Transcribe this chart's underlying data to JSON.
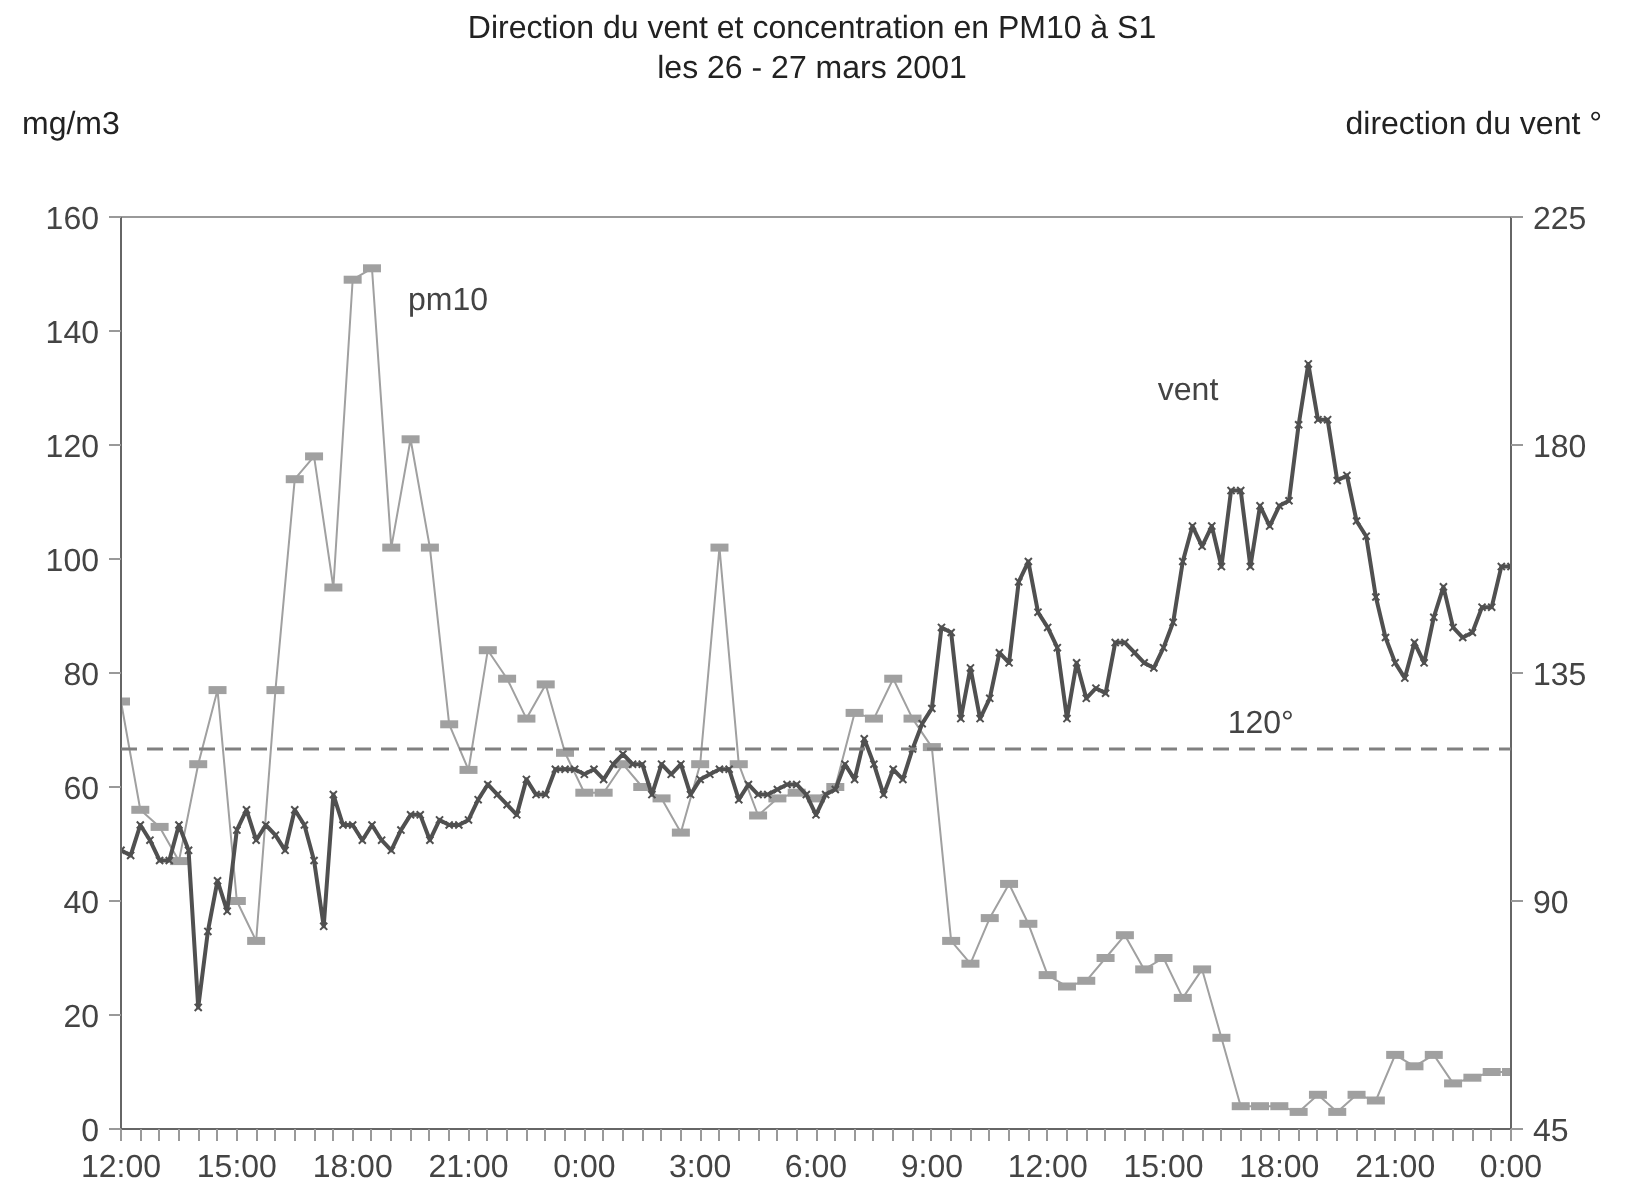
{
  "chart_data": {
    "type": "line",
    "title": "Direction du vent et concentration en PM10 à S1",
    "subtitle": "les 26 - 27 mars 2001",
    "ylabel": "mg/m3",
    "y2label": "direction du vent °",
    "xlim": [
      "2001-03-26T12:00",
      "2001-03-28T00:00"
    ],
    "xticks": [
      {
        "value": "2001-03-26T12:00",
        "label": "12:00"
      },
      {
        "value": "2001-03-26T15:00",
        "label": "15:00"
      },
      {
        "value": "2001-03-26T18:00",
        "label": "18:00"
      },
      {
        "value": "2001-03-26T21:00",
        "label": "21:00"
      },
      {
        "value": "2001-03-27T00:00",
        "label": "0:00"
      },
      {
        "value": "2001-03-27T03:00",
        "label": "3:00"
      },
      {
        "value": "2001-03-27T06:00",
        "label": "6:00"
      },
      {
        "value": "2001-03-27T09:00",
        "label": "9:00"
      },
      {
        "value": "2001-03-27T12:00",
        "label": "12:00"
      },
      {
        "value": "2001-03-27T15:00",
        "label": "15:00"
      },
      {
        "value": "2001-03-27T18:00",
        "label": "18:00"
      },
      {
        "value": "2001-03-27T21:00",
        "label": "21:00"
      },
      {
        "value": "2001-03-28T00:00",
        "label": "0:00"
      }
    ],
    "ylim": [
      0,
      160
    ],
    "yticks": [
      0,
      20,
      40,
      60,
      80,
      100,
      120,
      140,
      160
    ],
    "y2lim": [
      45,
      225
    ],
    "y2ticks": [
      45,
      90,
      135,
      180,
      225
    ],
    "grid": false,
    "legend": false,
    "ref_lines": [
      {
        "axis": "y2",
        "value": 120,
        "label": "120°",
        "color": "#808080",
        "line_style": "dashed"
      }
    ],
    "series": [
      {
        "name": "pm10",
        "color": "#a0a0a0",
        "marker": "square",
        "x": [
          "2001-03-26T12:00",
          "2001-03-26T12:30",
          "2001-03-26T13:00",
          "2001-03-26T13:30",
          "2001-03-26T14:00",
          "2001-03-26T14:30",
          "2001-03-26T15:00",
          "2001-03-26T15:30",
          "2001-03-26T16:00",
          "2001-03-26T16:30",
          "2001-03-26T17:00",
          "2001-03-26T17:30",
          "2001-03-26T18:00",
          "2001-03-26T18:30",
          "2001-03-26T19:00",
          "2001-03-26T19:30",
          "2001-03-26T20:00",
          "2001-03-26T20:30",
          "2001-03-26T21:00",
          "2001-03-26T21:30",
          "2001-03-26T22:00",
          "2001-03-26T22:30",
          "2001-03-26T23:00",
          "2001-03-26T23:30",
          "2001-03-27T00:00",
          "2001-03-27T00:30",
          "2001-03-27T01:00",
          "2001-03-27T01:30",
          "2001-03-27T02:00",
          "2001-03-27T02:30",
          "2001-03-27T03:00",
          "2001-03-27T03:30",
          "2001-03-27T04:00",
          "2001-03-27T04:30",
          "2001-03-27T05:00",
          "2001-03-27T05:30",
          "2001-03-27T06:00",
          "2001-03-27T06:30",
          "2001-03-27T07:00",
          "2001-03-27T07:30",
          "2001-03-27T08:00",
          "2001-03-27T08:30",
          "2001-03-27T09:00",
          "2001-03-27T09:30",
          "2001-03-27T10:00",
          "2001-03-27T10:30",
          "2001-03-27T11:00",
          "2001-03-27T11:30",
          "2001-03-27T12:00",
          "2001-03-27T12:30",
          "2001-03-27T13:00",
          "2001-03-27T13:30",
          "2001-03-27T14:00",
          "2001-03-27T14:30",
          "2001-03-27T15:00",
          "2001-03-27T15:30",
          "2001-03-27T16:00",
          "2001-03-27T16:30",
          "2001-03-27T17:00",
          "2001-03-27T17:30",
          "2001-03-27T18:00",
          "2001-03-27T18:30",
          "2001-03-27T19:00",
          "2001-03-27T19:30",
          "2001-03-27T20:00",
          "2001-03-27T20:30",
          "2001-03-27T21:00",
          "2001-03-27T21:30",
          "2001-03-27T22:00",
          "2001-03-27T22:30",
          "2001-03-27T23:00",
          "2001-03-27T23:30",
          "2001-03-28T00:00"
        ],
        "values": [
          75,
          56,
          53,
          47,
          64,
          77,
          40,
          33,
          77,
          114,
          118,
          95,
          149,
          151,
          102,
          121,
          102,
          71,
          63,
          84,
          79,
          72,
          78,
          66,
          59,
          59,
          64,
          60,
          58,
          52,
          64,
          102,
          64,
          55,
          58,
          59,
          58,
          60,
          73,
          72,
          79,
          72,
          67,
          33,
          29,
          37,
          43,
          36,
          27,
          25,
          26,
          30,
          34,
          28,
          30,
          23,
          28,
          16,
          4,
          4,
          4,
          3,
          6,
          3,
          6,
          5,
          13,
          11,
          13,
          8,
          9,
          10,
          10
        ]
      },
      {
        "name": "vent",
        "color": "#505050",
        "marker": "cross",
        "axis": "y2",
        "x": [
          "2001-03-26T12:00",
          "2001-03-26T12:15",
          "2001-03-26T12:30",
          "2001-03-26T12:45",
          "2001-03-26T13:00",
          "2001-03-26T13:15",
          "2001-03-26T13:30",
          "2001-03-26T13:45",
          "2001-03-26T14:00",
          "2001-03-26T14:15",
          "2001-03-26T14:30",
          "2001-03-26T14:45",
          "2001-03-26T15:00",
          "2001-03-26T15:15",
          "2001-03-26T15:30",
          "2001-03-26T15:45",
          "2001-03-26T16:00",
          "2001-03-26T16:15",
          "2001-03-26T16:30",
          "2001-03-26T16:45",
          "2001-03-26T17:00",
          "2001-03-26T17:15",
          "2001-03-26T17:30",
          "2001-03-26T17:45",
          "2001-03-26T18:00",
          "2001-03-26T18:15",
          "2001-03-26T18:30",
          "2001-03-26T18:45",
          "2001-03-26T19:00",
          "2001-03-26T19:15",
          "2001-03-26T19:30",
          "2001-03-26T19:45",
          "2001-03-26T20:00",
          "2001-03-26T20:15",
          "2001-03-26T20:30",
          "2001-03-26T20:45",
          "2001-03-26T21:00",
          "2001-03-26T21:15",
          "2001-03-26T21:30",
          "2001-03-26T21:45",
          "2001-03-26T22:00",
          "2001-03-26T22:15",
          "2001-03-26T22:30",
          "2001-03-26T22:45",
          "2001-03-26T23:00",
          "2001-03-26T23:15",
          "2001-03-26T23:30",
          "2001-03-26T23:45",
          "2001-03-27T00:00",
          "2001-03-27T00:15",
          "2001-03-27T00:30",
          "2001-03-27T00:45",
          "2001-03-27T01:00",
          "2001-03-27T01:15",
          "2001-03-27T01:30",
          "2001-03-27T01:45",
          "2001-03-27T02:00",
          "2001-03-27T02:15",
          "2001-03-27T02:30",
          "2001-03-27T02:45",
          "2001-03-27T03:00",
          "2001-03-27T03:15",
          "2001-03-27T03:30",
          "2001-03-27T03:45",
          "2001-03-27T04:00",
          "2001-03-27T04:15",
          "2001-03-27T04:30",
          "2001-03-27T04:45",
          "2001-03-27T05:00",
          "2001-03-27T05:15",
          "2001-03-27T05:30",
          "2001-03-27T05:45",
          "2001-03-27T06:00",
          "2001-03-27T06:15",
          "2001-03-27T06:30",
          "2001-03-27T06:45",
          "2001-03-27T07:00",
          "2001-03-27T07:15",
          "2001-03-27T07:30",
          "2001-03-27T07:45",
          "2001-03-27T08:00",
          "2001-03-27T08:15",
          "2001-03-27T08:30",
          "2001-03-27T08:45",
          "2001-03-27T09:00",
          "2001-03-27T09:15",
          "2001-03-27T09:30",
          "2001-03-27T09:45",
          "2001-03-27T10:00",
          "2001-03-27T10:15",
          "2001-03-27T10:30",
          "2001-03-27T10:45",
          "2001-03-27T11:00",
          "2001-03-27T11:15",
          "2001-03-27T11:30",
          "2001-03-27T11:45",
          "2001-03-27T12:00",
          "2001-03-27T12:15",
          "2001-03-27T12:30",
          "2001-03-27T12:45",
          "2001-03-27T13:00",
          "2001-03-27T13:15",
          "2001-03-27T13:30",
          "2001-03-27T13:45",
          "2001-03-27T14:00",
          "2001-03-27T14:15",
          "2001-03-27T14:30",
          "2001-03-27T14:45",
          "2001-03-27T15:00",
          "2001-03-27T15:15",
          "2001-03-27T15:30",
          "2001-03-27T15:45",
          "2001-03-27T16:00",
          "2001-03-27T16:15",
          "2001-03-27T16:30",
          "2001-03-27T16:45",
          "2001-03-27T17:00",
          "2001-03-27T17:15",
          "2001-03-27T17:30",
          "2001-03-27T17:45",
          "2001-03-27T18:00",
          "2001-03-27T18:15",
          "2001-03-27T18:30",
          "2001-03-27T18:45",
          "2001-03-27T19:00",
          "2001-03-27T19:15",
          "2001-03-27T19:30",
          "2001-03-27T19:45",
          "2001-03-27T20:00",
          "2001-03-27T20:15",
          "2001-03-27T20:30",
          "2001-03-27T20:45",
          "2001-03-27T21:00",
          "2001-03-27T21:15",
          "2001-03-27T21:30",
          "2001-03-27T21:45",
          "2001-03-27T22:00",
          "2001-03-27T22:15",
          "2001-03-27T22:30",
          "2001-03-27T22:45",
          "2001-03-27T23:00",
          "2001-03-27T23:15",
          "2001-03-27T23:30",
          "2001-03-27T23:45",
          "2001-03-28T00:00"
        ],
        "values": [
          100,
          99,
          105,
          102,
          98,
          98,
          105,
          100,
          69,
          84,
          94,
          88,
          104,
          108,
          102,
          105,
          103,
          100,
          108,
          105,
          98,
          85,
          111,
          105,
          105,
          102,
          105,
          102,
          100,
          104,
          107,
          107,
          102,
          106,
          105,
          105,
          106,
          110,
          113,
          111,
          109,
          107,
          114,
          111,
          111,
          116,
          116,
          116,
          115,
          116,
          114,
          117,
          119,
          117,
          117,
          111,
          117,
          115,
          117,
          111,
          114,
          115,
          116,
          116,
          110,
          113,
          111,
          111,
          112,
          113,
          113,
          111,
          107,
          111,
          112,
          117,
          114,
          122,
          117,
          111,
          116,
          114,
          120,
          125,
          128,
          144,
          143,
          126,
          136,
          126,
          130,
          139,
          137,
          153,
          157,
          147,
          144,
          140,
          126,
          137,
          130,
          132,
          131,
          141,
          141,
          139,
          137,
          136,
          140,
          145,
          157,
          164,
          160,
          164,
          156,
          171,
          171,
          156,
          168,
          164,
          168,
          169,
          184,
          196,
          185,
          185,
          173,
          174,
          165,
          162,
          150,
          142,
          137,
          134,
          141,
          137,
          146,
          152,
          144,
          142,
          143,
          148,
          148,
          156,
          156
        ]
      }
    ]
  }
}
